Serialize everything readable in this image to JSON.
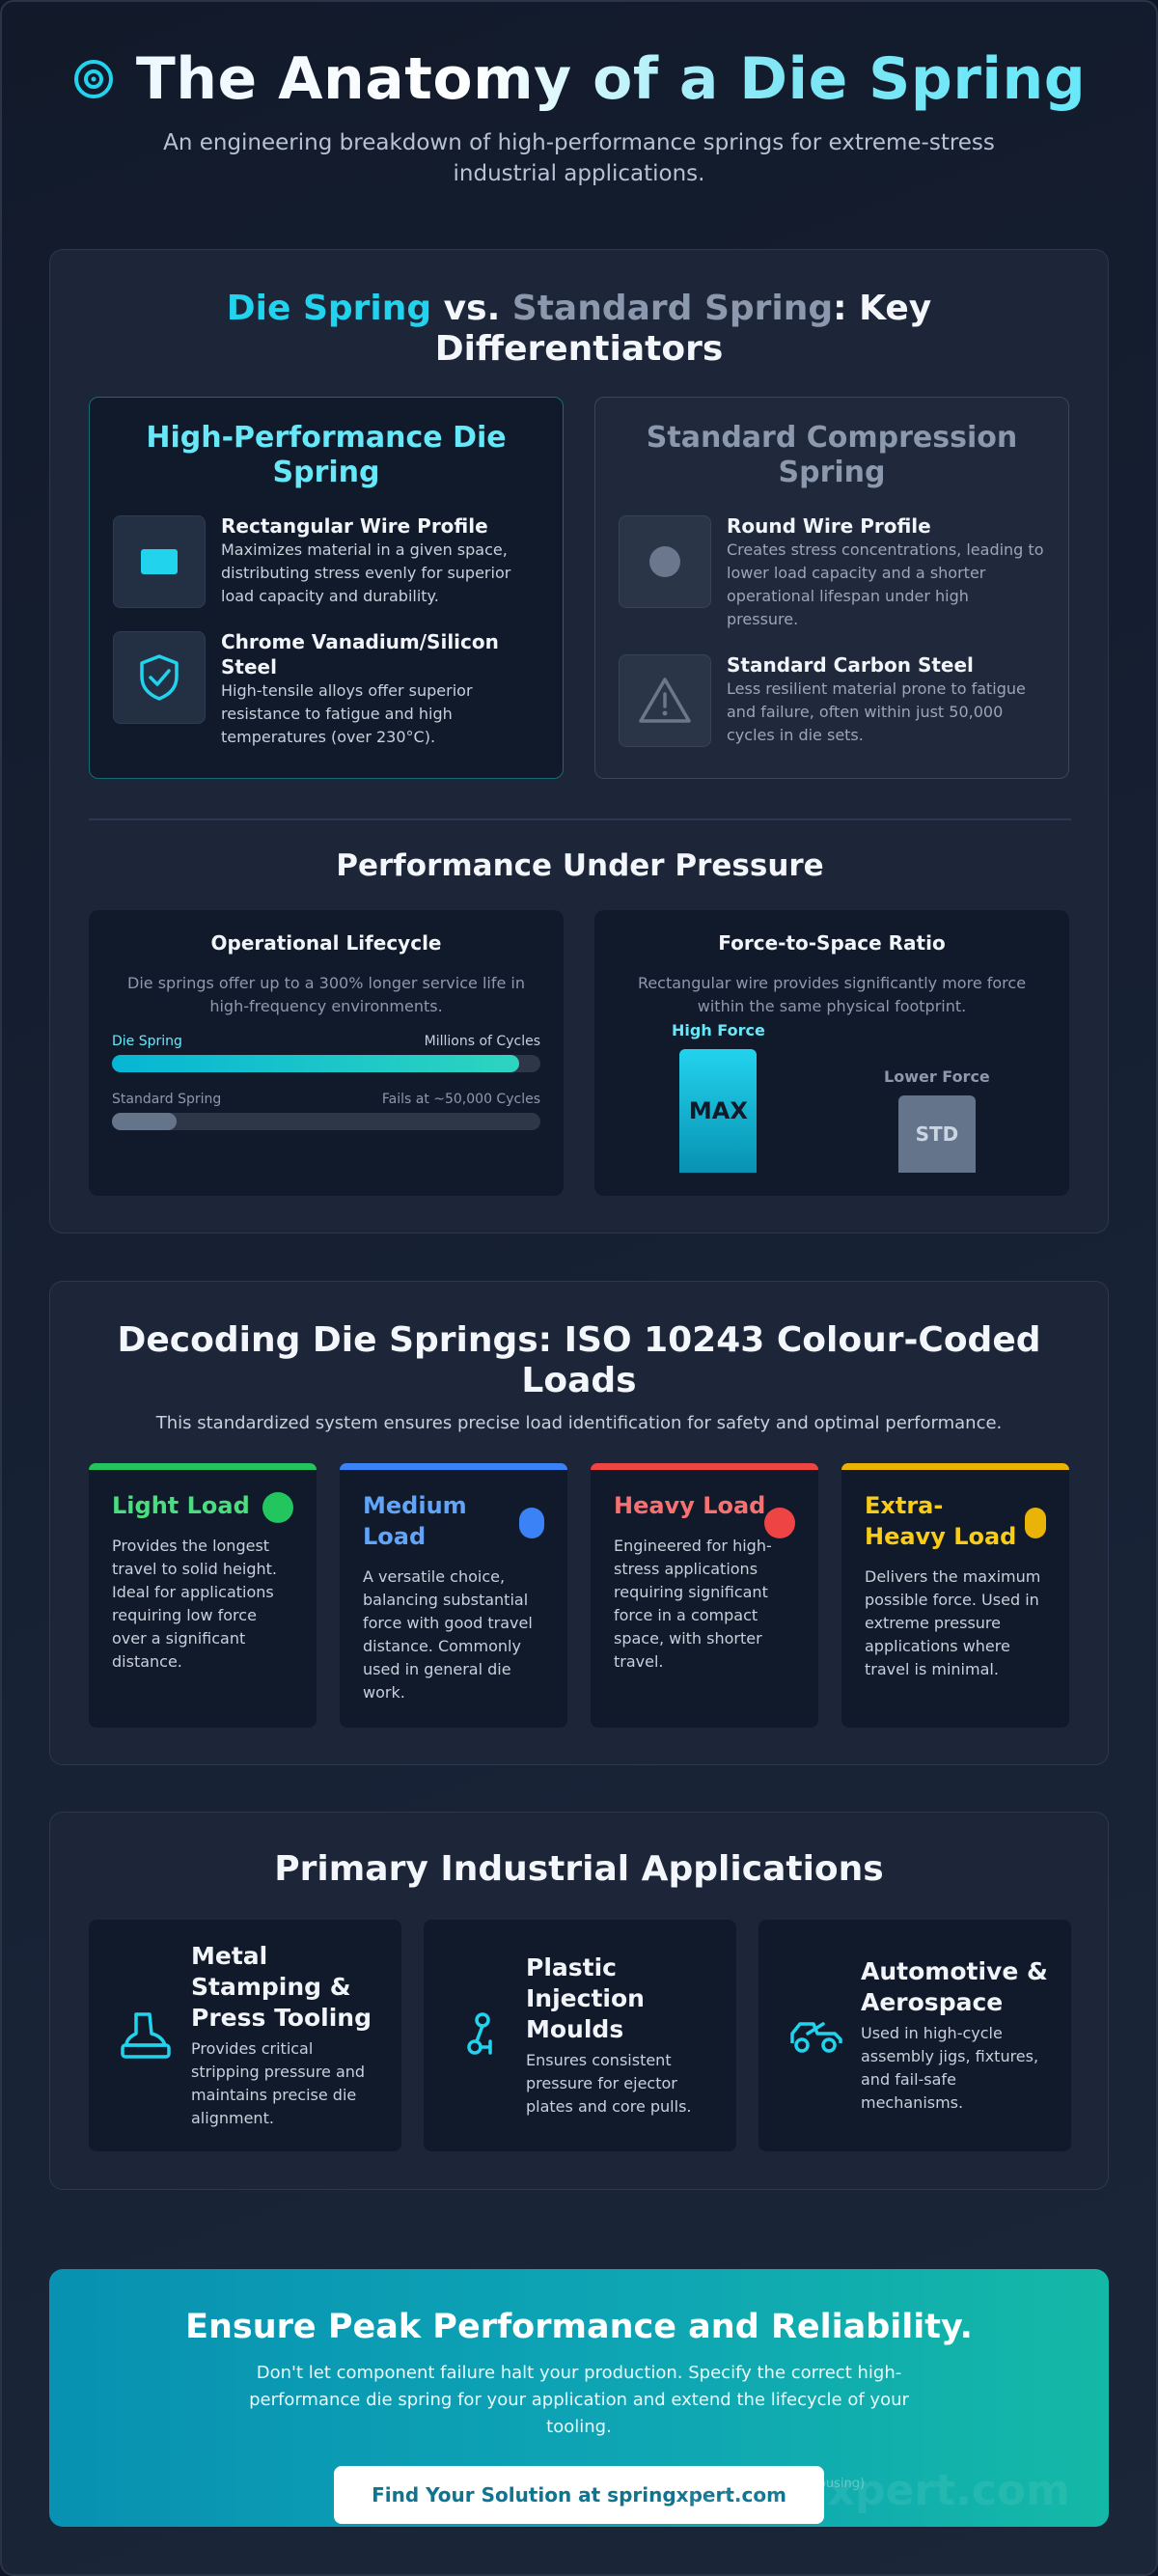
{
  "header": {
    "title": "The Anatomy of a Die Spring",
    "subtitle": "An engineering breakdown of high-performance springs for extreme-stress industrial applications."
  },
  "comparison": {
    "title_part1": "Die Spring",
    "title_part2": " vs. ",
    "title_part3": "Standard Spring",
    "title_part4": ": Key Differentiators",
    "die": {
      "heading": "High-Performance Die Spring",
      "features": [
        {
          "title": "Rectangular Wire Profile",
          "text": "Maximizes material in a given space, distributing stress evenly for superior load capacity and durability.",
          "icon": "rectangle-icon"
        },
        {
          "title": "Chrome Vanadium/Silicon Steel",
          "text": "High-tensile alloys offer superior resistance to fatigue and high temperatures (over 230°C).",
          "icon": "shield-check-icon"
        }
      ]
    },
    "standard": {
      "heading": "Standard Compression Spring",
      "features": [
        {
          "title": "Round Wire Profile",
          "text": "Creates stress concentrations, leading to lower load capacity and a shorter operational lifespan under high pressure.",
          "icon": "circle-icon"
        },
        {
          "title": "Standard Carbon Steel",
          "text": "Less resilient material prone to fatigue and failure, often within just 50,000 cycles in die sets.",
          "icon": "warning-icon"
        }
      ]
    }
  },
  "performance": {
    "title": "Performance Under Pressure",
    "lifecycle": {
      "title": "Operational Lifecycle",
      "desc": "Die springs offer up to a 300% longer service life in high-frequency environments.",
      "die_label": "Die Spring",
      "die_value": "Millions of Cycles",
      "die_fraction": 0.95,
      "std_label": "Standard Spring",
      "std_value": "Fails at ~50,000 Cycles",
      "std_fraction": 0.15
    },
    "force": {
      "title": "Force-to-Space Ratio",
      "desc": "Rectangular wire provides significantly more force within the same physical footprint.",
      "high_label": "High Force",
      "high_block": "MAX",
      "low_label": "Lower Force",
      "low_block": "STD"
    }
  },
  "loads": {
    "title": "Decoding Die Springs: ISO 10243 Colour-Coded Loads",
    "subtitle": "This standardized system ensures precise load identification for safety and optimal performance.",
    "items": [
      {
        "name": "Light Load",
        "color": "#22c55e",
        "text": "Provides the longest travel to solid height. Ideal for applications requiring low force over a significant distance."
      },
      {
        "name": "Medium Load",
        "color": "#3b82f6",
        "text": "A versatile choice, balancing substantial force with good travel distance. Commonly used in general die work."
      },
      {
        "name": "Heavy Load",
        "color": "#ef4444",
        "text": "Engineered for high-stress applications requiring significant force in a compact space, with shorter travel."
      },
      {
        "name": "Extra-Heavy Load",
        "color": "#eab308",
        "text": "Delivers the maximum possible force. Used in extreme pressure applications where travel is minimal."
      }
    ]
  },
  "applications": {
    "title": "Primary Industrial Applications",
    "items": [
      {
        "title": "Metal Stamping & Press Tooling",
        "text": "Provides critical stripping pressure and maintains precise die alignment.",
        "icon": "press-icon"
      },
      {
        "title": "Plastic Injection Moulds",
        "text": "Ensures consistent pressure for ejector plates and core pulls.",
        "icon": "mould-icon"
      },
      {
        "title": "Automotive & Aerospace",
        "text": "Used in high-cycle assembly jigs, fixtures, and fail-safe mechanisms.",
        "icon": "vehicle-icon"
      }
    ]
  },
  "cta": {
    "title": "Ensure Peak Performance and Reliability.",
    "text": "Don't let component failure halt your production. Specify the correct high-performance die spring for your application and extend the lifecycle of your tooling.",
    "button": "Find Your Solution at springxpert.com",
    "watermark": "springxpert.com",
    "faint_note": "(In Same Diameter Housing)"
  },
  "colors": {
    "accent": "#22d3ee",
    "muted": "#8b98ad"
  }
}
